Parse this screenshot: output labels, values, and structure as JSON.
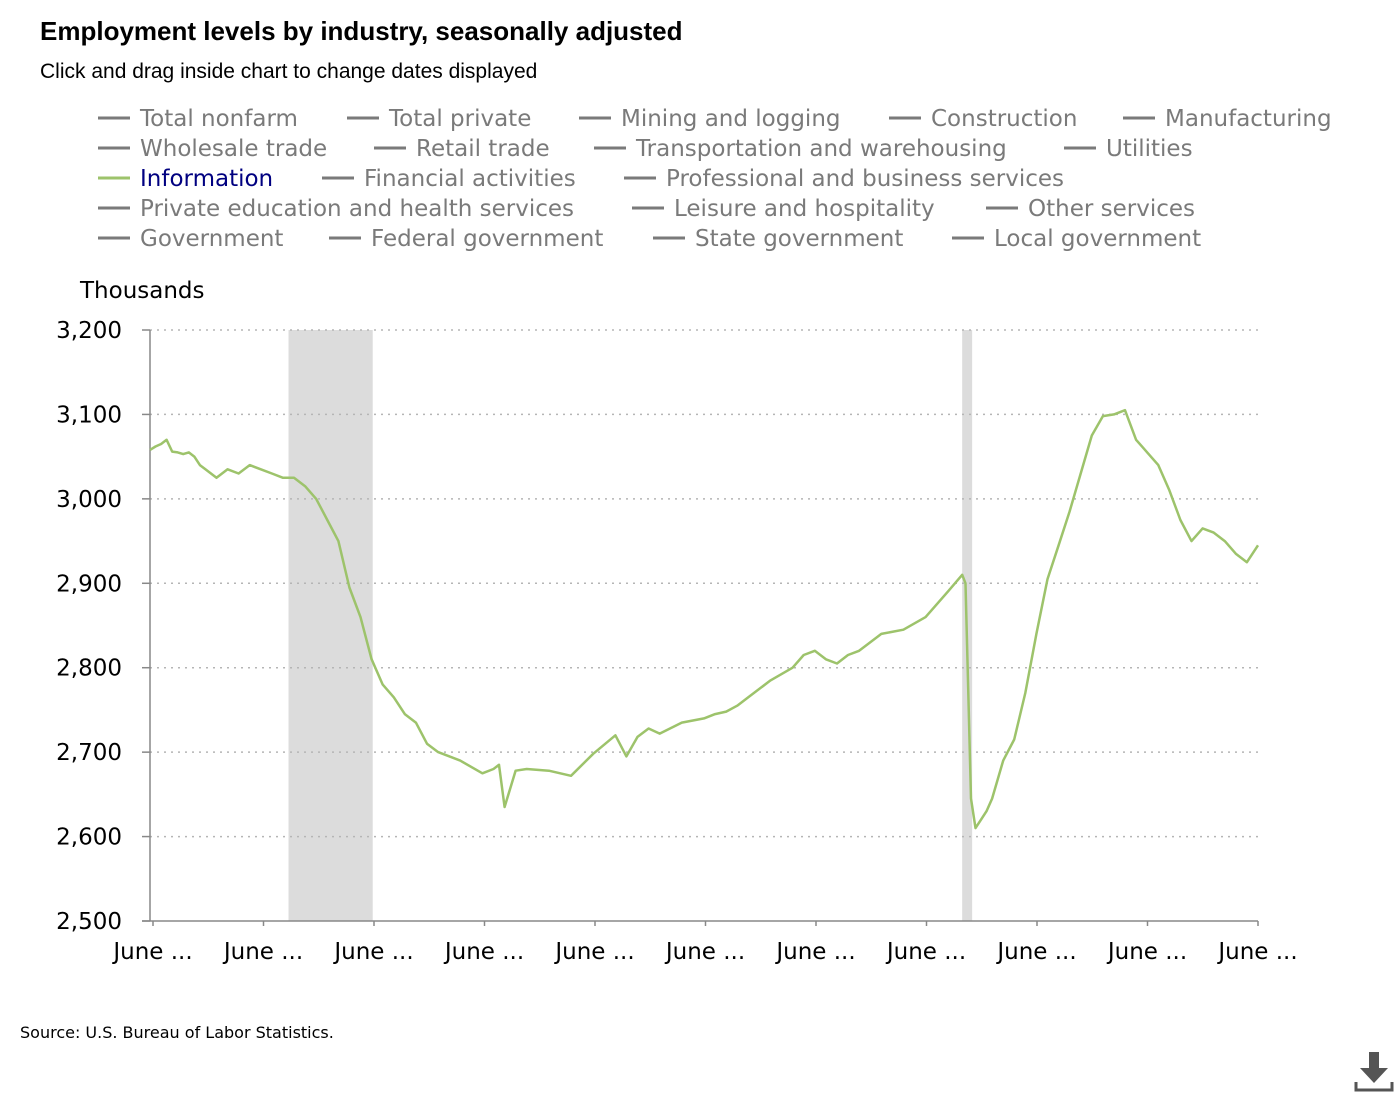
{
  "title": "Employment levels by industry, seasonally adjusted",
  "subtitle": "Click and drag inside chart to change dates displayed",
  "source": "Source: U.S. Bureau of Labor Statistics.",
  "icons": {
    "download": "download-icon"
  },
  "colors": {
    "active_series": "#9dc36b",
    "inactive_legend": "#7a7a7a",
    "active_legend_text": "#000080",
    "recession": "#dcdcdc"
  },
  "chart_data": {
    "type": "line",
    "ylabel": "Thousands",
    "ylim": [
      2500,
      3200
    ],
    "yticks": [
      2500,
      2600,
      2700,
      2800,
      2900,
      3000,
      3100,
      3200
    ],
    "ytick_labels": [
      "2,500",
      "2,600",
      "2,700",
      "2,800",
      "2,900",
      "3,000",
      "3,100",
      "3,200"
    ],
    "xtick_labels": [
      "June ...",
      "June ...",
      "June ...",
      "June ...",
      "June ...",
      "June ...",
      "June ...",
      "June ...",
      "June ...",
      "June ...",
      "June ..."
    ],
    "grid": "horizontal dotted",
    "legend_placement": "top",
    "legend": [
      [
        "Total nonfarm",
        "Total private",
        "Mining and logging",
        "Construction",
        "Manufacturing"
      ],
      [
        "Wholesale trade",
        "Retail trade",
        "Transportation and warehousing",
        "Utilities"
      ],
      [
        "Information",
        "Financial activities",
        "Professional and business services"
      ],
      [
        "Private education and health services",
        "Leisure and hospitality",
        "Other services"
      ],
      [
        "Government",
        "Federal government",
        "State government",
        "Local government"
      ]
    ],
    "active_series": "Information",
    "recession_bands": [
      [
        12.5,
        20.1
      ],
      [
        73.3,
        74.2
      ]
    ],
    "series": [
      {
        "name": "Information",
        "x": [
          0,
          0.5,
          1,
          1.5,
          2,
          2.5,
          3,
          3.5,
          4,
          4.5,
          5,
          6,
          7,
          8,
          9,
          10,
          11,
          12,
          13,
          14,
          15,
          16,
          17,
          18,
          19,
          20,
          21,
          22,
          23,
          24,
          25,
          26,
          28,
          30,
          31,
          31.5,
          32,
          33,
          34,
          36,
          38,
          40,
          42,
          43,
          44,
          45,
          46,
          48,
          50,
          51,
          52,
          53,
          54,
          56,
          58,
          59,
          60,
          61,
          62,
          63,
          64,
          66,
          68,
          70,
          72,
          73.3,
          73.6,
          74.1,
          74.5,
          75,
          75.5,
          76,
          77,
          78,
          79,
          80,
          81,
          82,
          83,
          84,
          85,
          86,
          87,
          88,
          89,
          90,
          91,
          92,
          93,
          94,
          95,
          96,
          97,
          98,
          99,
          100
        ],
        "values": [
          3058,
          3062,
          3065,
          3070,
          3056,
          3055,
          3053,
          3055,
          3050,
          3040,
          3035,
          3025,
          3035,
          3030,
          3040,
          3035,
          3030,
          3025,
          3025,
          3015,
          3000,
          2975,
          2950,
          2895,
          2860,
          2810,
          2780,
          2765,
          2745,
          2735,
          2710,
          2700,
          2690,
          2675,
          2680,
          2685,
          2635,
          2678,
          2680,
          2678,
          2672,
          2698,
          2720,
          2695,
          2718,
          2728,
          2722,
          2735,
          2740,
          2745,
          2748,
          2755,
          2765,
          2785,
          2800,
          2815,
          2820,
          2810,
          2805,
          2815,
          2820,
          2840,
          2845,
          2860,
          2890,
          2910,
          2900,
          2645,
          2610,
          2620,
          2630,
          2645,
          2690,
          2715,
          2770,
          2840,
          2905,
          2945,
          2985,
          3030,
          3075,
          3098,
          3100,
          3105,
          3070,
          3055,
          3040,
          3010,
          2975,
          2950,
          2965,
          2960,
          2950,
          2935,
          2925,
          2945
        ]
      }
    ]
  }
}
